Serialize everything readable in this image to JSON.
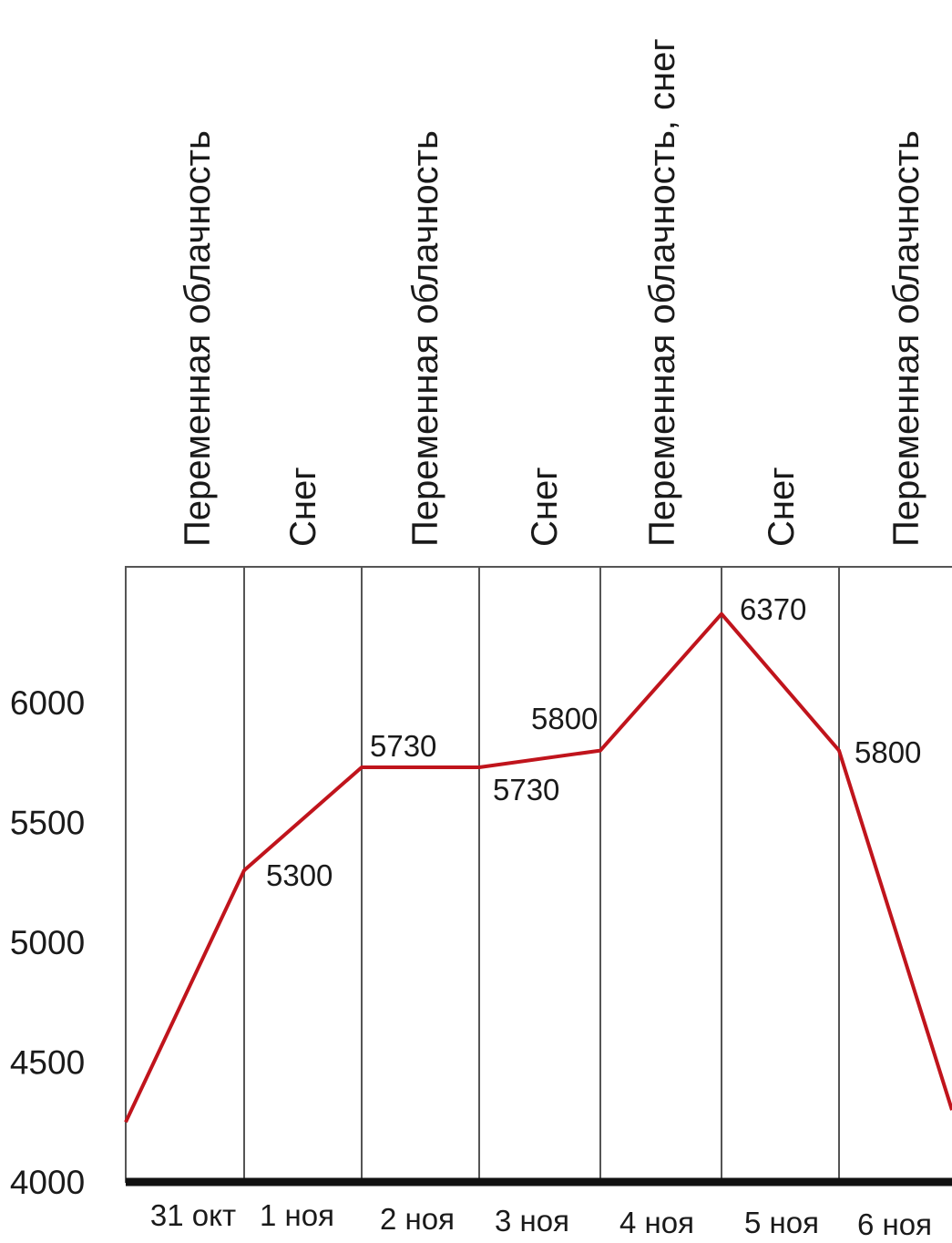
{
  "chart_data": {
    "type": "line",
    "title": "",
    "xlabel": "",
    "ylabel": "",
    "ylim": [
      4000,
      6500
    ],
    "yticks": [
      4000,
      4500,
      5000,
      5500,
      6000
    ],
    "categories": [
      "31 окт",
      "1 ноя",
      "2 ноя",
      "3 ноя",
      "4 ноя",
      "5 ноя",
      "6 ноя"
    ],
    "weather": [
      "Переменная облачность",
      "Снег",
      "Переменная облачность",
      "Снег",
      "Переменная облачность, снег",
      "Снег",
      "Переменная облачность"
    ],
    "series": [
      {
        "color": "#c0141c",
        "points": [
          {
            "x": "31 окт",
            "y": 4250
          },
          {
            "x": "1 ноя",
            "y": 5300
          },
          {
            "x": "2 ноя",
            "y": 5730
          },
          {
            "x": "3 ноя",
            "y": 5730
          },
          {
            "x": "4 ноя",
            "y": 5800
          },
          {
            "x": "5 ноя",
            "y": 6370
          },
          {
            "x": "6 ноя",
            "y": 5800
          },
          {
            "x": "6 ноя",
            "y": 4300
          }
        ]
      }
    ],
    "data_labels": [
      "5300",
      "5730",
      "5730",
      "5800",
      "6370",
      "5800"
    ],
    "grid": false,
    "legend": "none"
  }
}
